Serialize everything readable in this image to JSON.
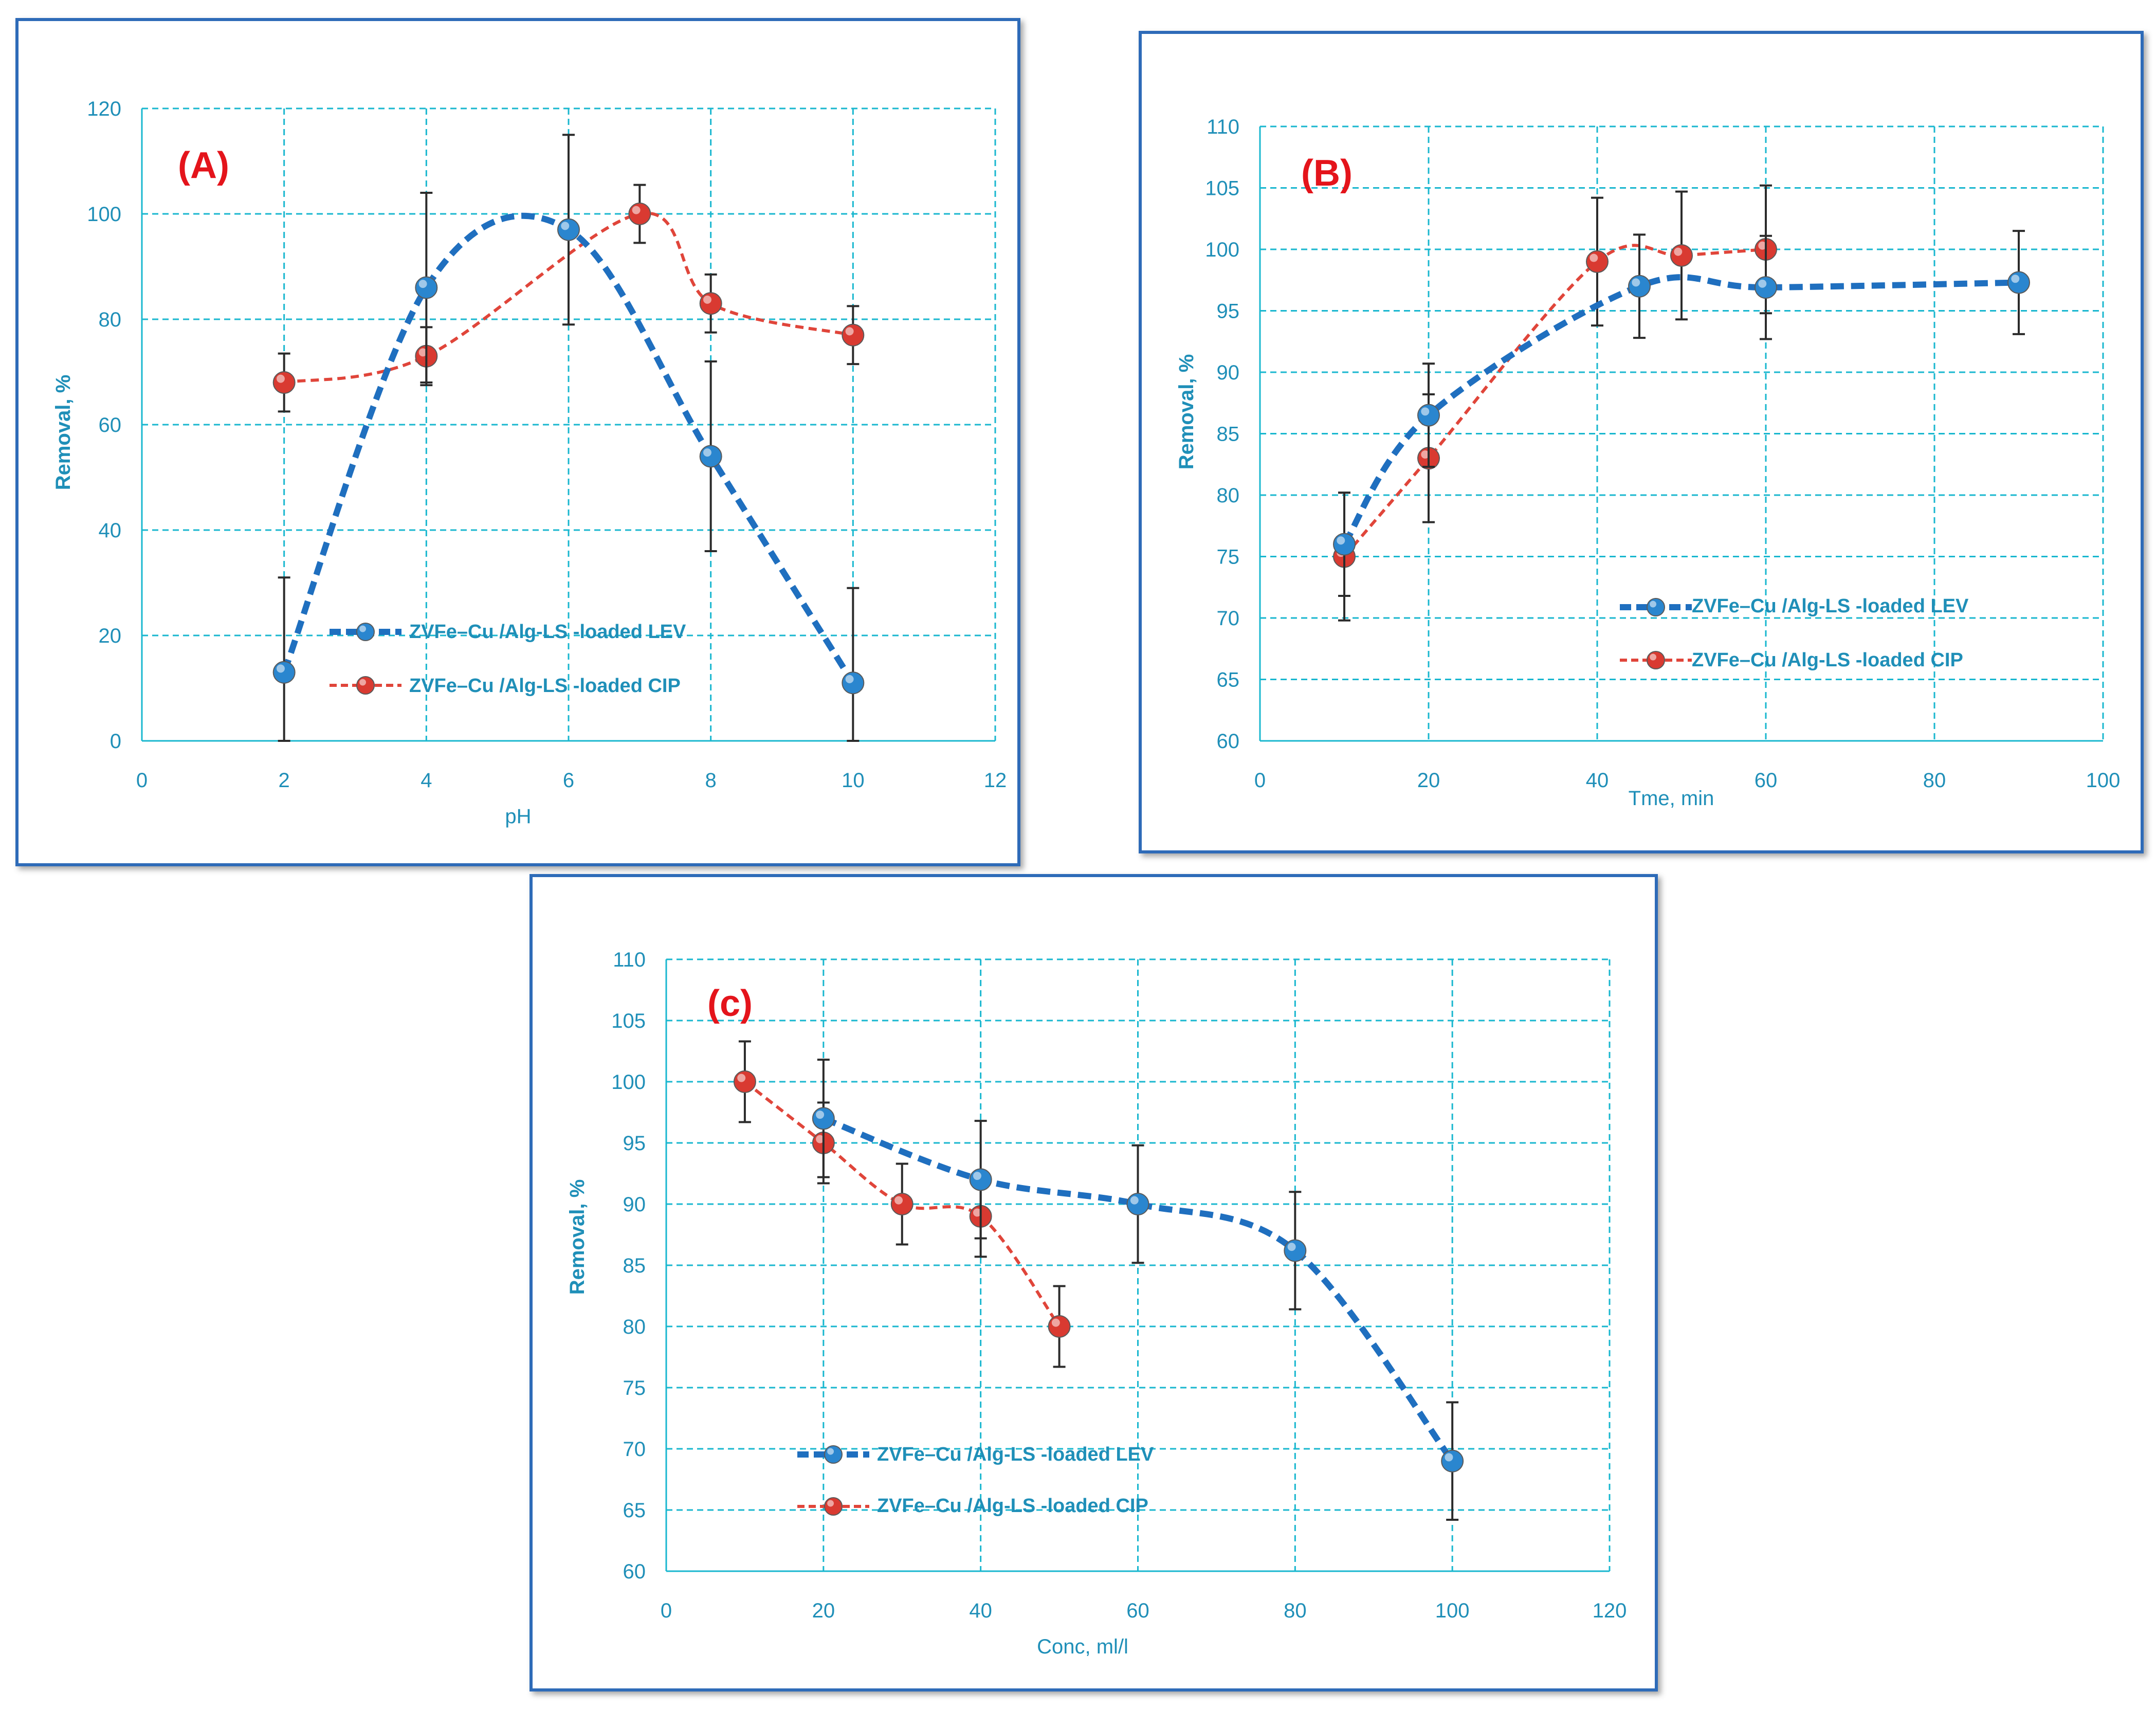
{
  "colors": {
    "lev_line": "#1f6fbf",
    "lev_marker": "#2a86cf",
    "cip_line": "#e0453a",
    "cip_marker": "#d93a31",
    "grid": "#19b7cf",
    "text": "#1f8fb8",
    "panel_label": "#e4141b",
    "frame": "#2e6bb8"
  },
  "chart_data": [
    {
      "id": "A",
      "type": "line",
      "panel_label": "(A)",
      "xlabel": "pH",
      "ylabel": "Removal, %",
      "xlim": [
        0,
        12
      ],
      "ylim": [
        0,
        120
      ],
      "xticks": [
        "0",
        "2",
        "4",
        "6",
        "8",
        "10",
        "12"
      ],
      "yticks": [
        "0",
        "20",
        "40",
        "60",
        "80",
        "100",
        "120"
      ],
      "grid": true,
      "legend_position": "bottom-center",
      "series": [
        {
          "name": "ZVFe–Cu /Alg-LS -loaded LEV",
          "style": "dashed-thick",
          "x": [
            2,
            4,
            6,
            8,
            10
          ],
          "y": [
            13,
            86,
            97,
            54,
            11
          ],
          "error": [
            18,
            18,
            18,
            18,
            18
          ]
        },
        {
          "name": "ZVFe–Cu /Alg-LS -loaded CIP",
          "style": "dashed-thin",
          "x": [
            2,
            4,
            7,
            8,
            10
          ],
          "y": [
            68,
            73,
            100,
            83,
            77
          ],
          "error": [
            5.5,
            5.5,
            5.5,
            5.5,
            5.5
          ]
        }
      ]
    },
    {
      "id": "B",
      "type": "line",
      "panel_label": "(B)",
      "xlabel": "Tme, min",
      "ylabel": "Removal, %",
      "xlim": [
        0,
        100
      ],
      "ylim": [
        60,
        110
      ],
      "xticks": [
        "0",
        "20",
        "40",
        "60",
        "80",
        "100"
      ],
      "yticks": [
        "60",
        "65",
        "70",
        "75",
        "80",
        "85",
        "90",
        "95",
        "100",
        "105",
        "110"
      ],
      "grid": true,
      "legend_position": "bottom-right",
      "series": [
        {
          "name": "ZVFe–Cu /Alg-LS -loaded LEV",
          "style": "dashed-thick",
          "x": [
            10,
            20,
            45,
            60,
            90
          ],
          "y": [
            76,
            86.5,
            97,
            96.9,
            97.3
          ],
          "error": [
            4.2,
            4.2,
            4.2,
            4.2,
            4.2
          ]
        },
        {
          "name": "ZVFe–Cu /Alg-LS -loaded CIP",
          "style": "dashed-thin",
          "x": [
            10,
            20,
            40,
            50,
            60
          ],
          "y": [
            75,
            83,
            99,
            99.5,
            100
          ],
          "error": [
            5.2,
            5.2,
            5.2,
            5.2,
            5.2
          ]
        }
      ]
    },
    {
      "id": "C",
      "type": "line",
      "panel_label": "(c)",
      "xlabel": "Conc, ml/l",
      "ylabel": "Removal, %",
      "xlim": [
        0,
        120
      ],
      "ylim": [
        60,
        110
      ],
      "xticks": [
        "0",
        "20",
        "40",
        "60",
        "80",
        "100",
        "120"
      ],
      "yticks": [
        "60",
        "65",
        "70",
        "75",
        "80",
        "85",
        "90",
        "95",
        "100",
        "105",
        "110"
      ],
      "grid": true,
      "legend_position": "bottom-left",
      "series": [
        {
          "name": "ZVFe–Cu /Alg-LS -loaded LEV",
          "style": "dashed-thick",
          "x": [
            20,
            40,
            60,
            80,
            100
          ],
          "y": [
            97,
            92,
            90,
            86.2,
            69
          ],
          "error": [
            4.8,
            4.8,
            4.8,
            4.8,
            4.8
          ]
        },
        {
          "name": "ZVFe–Cu /Alg-LS -loaded CIP",
          "style": "dashed-thin",
          "x": [
            10,
            20,
            30,
            40,
            50
          ],
          "y": [
            100,
            95,
            90,
            89,
            80
          ],
          "error": [
            3.3,
            3.3,
            3.3,
            3.3,
            3.3
          ]
        }
      ]
    }
  ]
}
